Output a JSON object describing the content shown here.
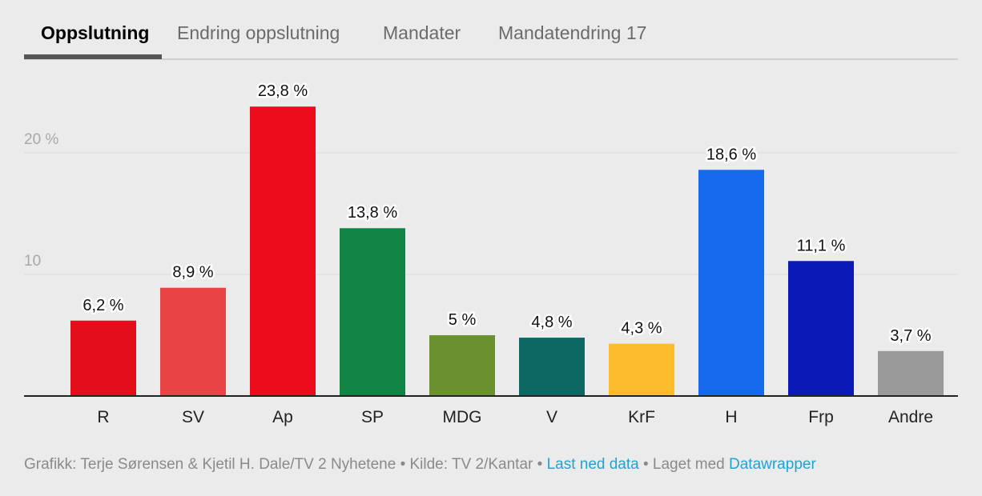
{
  "tabs": [
    {
      "label": "Oppslutning",
      "active": true
    },
    {
      "label": "Endring oppslutning",
      "active": false
    },
    {
      "label": "Mandater",
      "active": false
    },
    {
      "label": "Mandatendring 17",
      "active": false
    }
  ],
  "chart_data": {
    "type": "bar",
    "categories": [
      "R",
      "SV",
      "Ap",
      "SP",
      "MDG",
      "V",
      "KrF",
      "H",
      "Frp",
      "Andre"
    ],
    "values": [
      6.2,
      8.9,
      23.8,
      13.8,
      5,
      4.8,
      4.3,
      18.6,
      11.1,
      3.7
    ],
    "value_labels": [
      "6,2 %",
      "8,9 %",
      "23,8 %",
      "13,8 %",
      "5 %",
      "4,8 %",
      "4,3 %",
      "18,6 %",
      "11,1 %",
      "3,7 %"
    ],
    "colors": [
      "#e30d1b",
      "#e84446",
      "#ec0b1b",
      "#108444",
      "#6b902e",
      "#0d6864",
      "#fcbc2c",
      "#1469ec",
      "#0b19b7",
      "#9a9a9a"
    ],
    "yticks": [
      {
        "value": 10,
        "label": "10"
      },
      {
        "value": 20,
        "label": "20 %"
      }
    ],
    "ylim": [
      0,
      24
    ],
    "grid": true,
    "title": "",
    "xlabel": "",
    "ylabel": ""
  },
  "footer": {
    "credit": "Grafikk: Terje Sørensen & Kjetil H. Dale/TV 2 Nyhetene • Kilde: TV 2/Kantar • ",
    "download_link": "Last ned data",
    "made_with": " • Laget med ",
    "datawrapper_link": "Datawrapper"
  }
}
